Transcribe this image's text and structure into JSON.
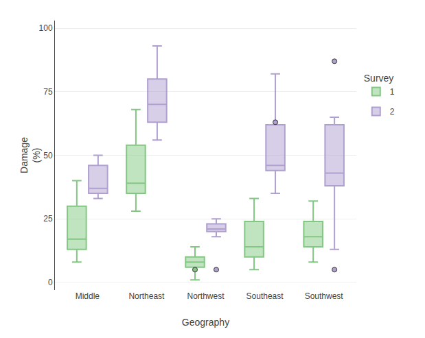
{
  "chart_data": {
    "type": "box",
    "categories": [
      "Middle",
      "Northeast",
      "Northwest",
      "Southeast",
      "Southwest"
    ],
    "series": [
      {
        "name": "1",
        "color": "#82c882",
        "marker": "circle",
        "values": [
          {
            "whislo": 8,
            "q1": 13,
            "med": 17,
            "q3": 30,
            "whishi": 40,
            "fliers": []
          },
          {
            "whislo": 28,
            "q1": 35,
            "med": 39,
            "q3": 54,
            "whishi": 68,
            "fliers": []
          },
          {
            "whislo": 1,
            "q1": 6,
            "med": 8,
            "q3": 10,
            "whishi": 14,
            "fliers": [
              5
            ]
          },
          {
            "whislo": 5,
            "q1": 10,
            "med": 14,
            "q3": 24,
            "whishi": 33,
            "fliers": []
          },
          {
            "whislo": 8,
            "q1": 14,
            "med": 18,
            "q3": 24,
            "whishi": 32,
            "fliers": []
          }
        ]
      },
      {
        "name": "2",
        "color": "#b0a0d0",
        "marker": "circle",
        "values": [
          {
            "whislo": 33,
            "q1": 35,
            "med": 37,
            "q3": 46,
            "whishi": 50,
            "fliers": []
          },
          {
            "whislo": 56,
            "q1": 63,
            "med": 70,
            "q3": 80,
            "whishi": 93,
            "fliers": []
          },
          {
            "whislo": 18,
            "q1": 20,
            "med": 21,
            "q3": 23,
            "whishi": 25,
            "fliers": [
              5
            ]
          },
          {
            "whislo": 35,
            "q1": 44,
            "med": 46,
            "q3": 62,
            "whishi": 82,
            "fliers": [
              63
            ]
          },
          {
            "whislo": 13,
            "q1": 38,
            "med": 43,
            "q3": 62,
            "whishi": 65,
            "fliers": [
              5,
              87
            ]
          }
        ]
      }
    ],
    "xlabel": "Geography",
    "ylabel": "Damage\n(%)",
    "legend_title": "Survey",
    "legend": "right",
    "ylim": [
      -3,
      103
    ],
    "yticks": [
      0,
      25,
      50,
      75,
      100
    ],
    "grid": true
  }
}
